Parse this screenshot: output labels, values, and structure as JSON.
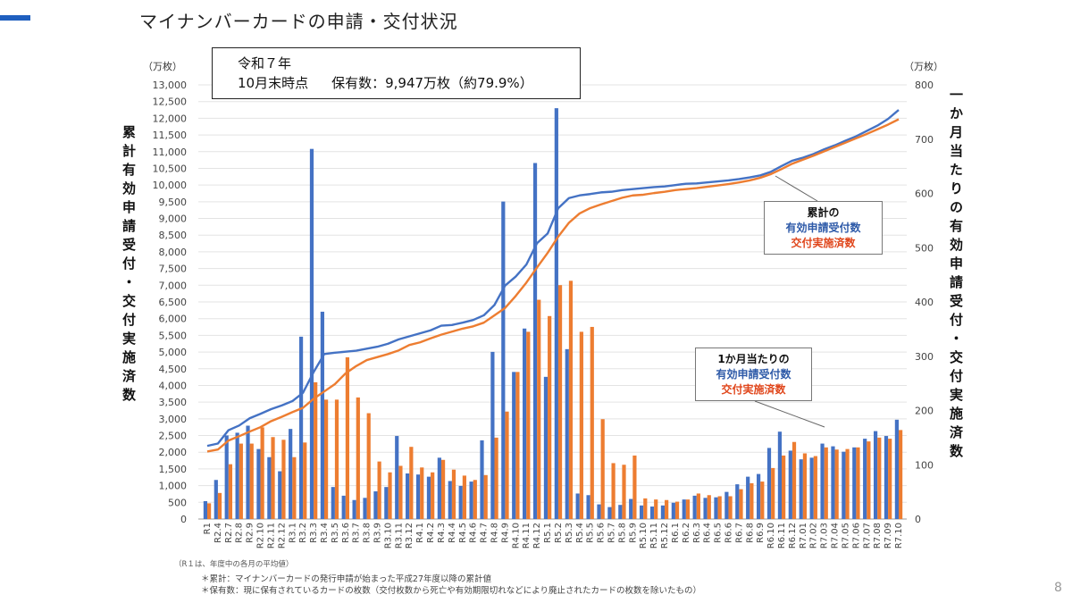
{
  "header": {
    "title": "マイナンバーカードの申請・交付状況"
  },
  "info_box": {
    "line1": "令和７年",
    "line2_date": "10月末時点",
    "line2_holding": "保有数：9,947万枚（約79.9%）"
  },
  "units": {
    "left": "（万枚）",
    "right": "（万枚）"
  },
  "axis_titles": {
    "left": "累計有効申請受付・交付実施済数",
    "right": "一か月当たりの有効申請受付・交付実施済数"
  },
  "callouts": {
    "cumulative": {
      "line1": "累計の",
      "line2": "有効申請受付数",
      "line3": "交付実施済数"
    },
    "monthly": {
      "line1": "1か月当たりの",
      "line2": "有効申請受付数",
      "line3": "交付実施済数"
    }
  },
  "notes": {
    "r1": "（R１は、年度中の各月の平均値）",
    "cumulative": "＊累計：マイナンバーカードの発行申請が始まった平成27年度以降の累計値",
    "holding": "＊保有数：現に保有されているカードの枚数（交付枚数から死亡や有効期限切れなどにより廃止されたカードの枚数を除いたもの）"
  },
  "page_number": "8",
  "colors": {
    "blue": "#4472c4",
    "orange": "#ed7d31"
  },
  "chart_data": {
    "type": "bar+line",
    "title": "マイナンバーカードの申請・交付状況",
    "categories": [
      "R1",
      "R2.4",
      "R2.7",
      "R2.8",
      "R2.9",
      "R2.10",
      "R2.11",
      "R2.12",
      "R3.1",
      "R3.2",
      "R3.3",
      "R3.4",
      "R3.5",
      "R3.6",
      "R3.7",
      "R3.8",
      "R3.9",
      "R3.10",
      "R3.11",
      "R3.12",
      "R4.1",
      "R4.2",
      "R4.3",
      "R4.4",
      "R4.5",
      "R4.6",
      "R4.7",
      "R4.8",
      "R4.9",
      "R4.10",
      "R4.11",
      "R4.12",
      "R5.1",
      "R5.2",
      "R5.3",
      "R5.4",
      "R5.5",
      "R5.6",
      "R5.7",
      "R5.8",
      "R5.9",
      "R5.10",
      "R5.11",
      "R5.12",
      "R6.1",
      "R6.2",
      "R6.3",
      "R6.4",
      "R6.5",
      "R6.6",
      "R6.7",
      "R6.8",
      "R6.9",
      "R6.10",
      "R6.11",
      "R6.12",
      "R7.01",
      "R7.02",
      "R7.03",
      "R7.04",
      "R7.05",
      "R7.06",
      "R7.07",
      "R7.08",
      "R7.09",
      "R7.10"
    ],
    "left_axis": {
      "label": "累計有効申請受付・交付実施済数",
      "unit": "万枚",
      "ylim": [
        0,
        13000
      ],
      "ticks": [
        "0",
        "500",
        "1,000",
        "1,500",
        "2,000",
        "2,500",
        "3,000",
        "3,500",
        "4,000",
        "4,500",
        "5,000",
        "5,500",
        "6,000",
        "6,500",
        "7,000",
        "7,500",
        "8,000",
        "8,500",
        "9,000",
        "9,500",
        "10,000",
        "10,500",
        "11,000",
        "11,500",
        "12,000",
        "12,500",
        "13,000"
      ]
    },
    "right_axis": {
      "label": "一か月当たりの有効申請受付・交付実施済数",
      "unit": "万枚",
      "ylim": [
        0,
        800
      ],
      "ticks": [
        "0",
        "100",
        "200",
        "300",
        "400",
        "500",
        "600",
        "700",
        "800"
      ]
    },
    "grid": true,
    "series": [
      {
        "name": "1か月当たりの有効申請受付数",
        "type": "bar",
        "axis": "right",
        "color": "#4472c4",
        "values": [
          33,
          72,
          154,
          159,
          172,
          129,
          114,
          88,
          166,
          336,
          682,
          382,
          59,
          43,
          35,
          39,
          51,
          59,
          153,
          84,
          82,
          78,
          113,
          70,
          61,
          69,
          145,
          308,
          585,
          271,
          351,
          656,
          262,
          757,
          313,
          47,
          44,
          27,
          22,
          26,
          37,
          25,
          23,
          25,
          30,
          36,
          43,
          39,
          40,
          50,
          64,
          78,
          83,
          131,
          161,
          126,
          110,
          113,
          139,
          134,
          124,
          132,
          148,
          162,
          153,
          183
        ]
      },
      {
        "name": "1か月当たりの交付実施済数",
        "type": "bar",
        "axis": "right",
        "color": "#ed7d31",
        "values": [
          29,
          48,
          101,
          139,
          139,
          169,
          151,
          146,
          114,
          141,
          252,
          220,
          220,
          298,
          224,
          195,
          106,
          86,
          98,
          133,
          95,
          86,
          109,
          91,
          80,
          72,
          81,
          150,
          198,
          271,
          345,
          404,
          374,
          431,
          439,
          345,
          354,
          184,
          103,
          100,
          117,
          38,
          36,
          35,
          32,
          36,
          47,
          44,
          42,
          42,
          55,
          66,
          69,
          94,
          117,
          142,
          121,
          116,
          132,
          128,
          129,
          132,
          143,
          150,
          148,
          164
        ]
      },
      {
        "name": "累計の有効申請受付数",
        "type": "line",
        "axis": "left",
        "color": "#4472c4",
        "values": [
          2190,
          2260,
          2660,
          2800,
          3020,
          3150,
          3290,
          3400,
          3530,
          3780,
          4400,
          4940,
          4980,
          5010,
          5040,
          5100,
          5160,
          5250,
          5380,
          5470,
          5560,
          5650,
          5790,
          5810,
          5880,
          5960,
          6100,
          6410,
          6990,
          7260,
          7620,
          8260,
          8550,
          9310,
          9610,
          9690,
          9730,
          9780,
          9800,
          9850,
          9880,
          9910,
          9940,
          9960,
          10000,
          10040,
          10050,
          10080,
          10110,
          10140,
          10180,
          10230,
          10290,
          10400,
          10570,
          10730,
          10820,
          10930,
          11070,
          11190,
          11330,
          11460,
          11620,
          11780,
          11980,
          12250
        ]
      },
      {
        "name": "累計の交付実施済数",
        "type": "line",
        "axis": "left",
        "color": "#ed7d31",
        "values": [
          2020,
          2080,
          2350,
          2480,
          2620,
          2750,
          2930,
          3060,
          3200,
          3330,
          3600,
          3820,
          4040,
          4360,
          4580,
          4760,
          4850,
          4940,
          5050,
          5210,
          5290,
          5410,
          5520,
          5610,
          5700,
          5770,
          5880,
          6100,
          6320,
          6680,
          7080,
          7530,
          7970,
          8460,
          8870,
          9150,
          9310,
          9420,
          9520,
          9620,
          9690,
          9710,
          9760,
          9800,
          9850,
          9880,
          9910,
          9950,
          9990,
          10030,
          10080,
          10140,
          10220,
          10330,
          10480,
          10640,
          10760,
          10880,
          11010,
          11140,
          11270,
          11400,
          11530,
          11670,
          11810,
          11970
        ]
      }
    ]
  }
}
